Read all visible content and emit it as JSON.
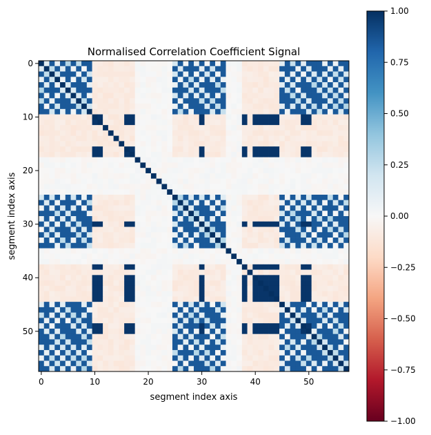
{
  "chart_data": {
    "type": "heatmap",
    "title": "Normalised Correlation Coefficient Signal",
    "xlabel": "segment index axis",
    "ylabel": "segment index axis",
    "n": 58,
    "x_ticks": [
      0,
      10,
      20,
      30,
      40,
      50
    ],
    "y_ticks": [
      0,
      10,
      20,
      30,
      40,
      50
    ],
    "colormap": "RdBu",
    "vmin": -1.0,
    "vmax": 1.0,
    "colorbar_ticks": [
      "1.00",
      "0.75",
      "0.50",
      "0.25",
      "0.00",
      "−0.25",
      "−0.50",
      "−0.75",
      "−1.00"
    ],
    "colorbar_values": [
      1.0,
      0.75,
      0.5,
      0.25,
      0.0,
      -0.25,
      -0.5,
      -0.75,
      -1.0
    ],
    "diagonal_value": 1.0,
    "periodic_groups": [
      [
        0,
        1,
        2,
        3,
        4,
        5,
        6,
        7,
        8,
        9
      ],
      [
        25,
        26,
        27,
        28,
        29,
        30,
        31,
        32,
        33,
        34
      ],
      [
        45,
        46,
        47,
        48,
        49,
        50,
        51,
        52,
        53,
        54,
        55,
        56,
        57
      ]
    ],
    "periodic_value": 0.85,
    "periodic_offdiag_value": 0.3,
    "block_segments": [
      10,
      11,
      16,
      17,
      30,
      38,
      40,
      41,
      42,
      43,
      44,
      49,
      50
    ],
    "block_value": 0.98,
    "faint_segments": [
      18,
      19,
      20,
      21,
      22,
      23,
      24,
      35,
      36,
      37
    ],
    "faint_value": 0.03,
    "background_value": -0.09
  }
}
